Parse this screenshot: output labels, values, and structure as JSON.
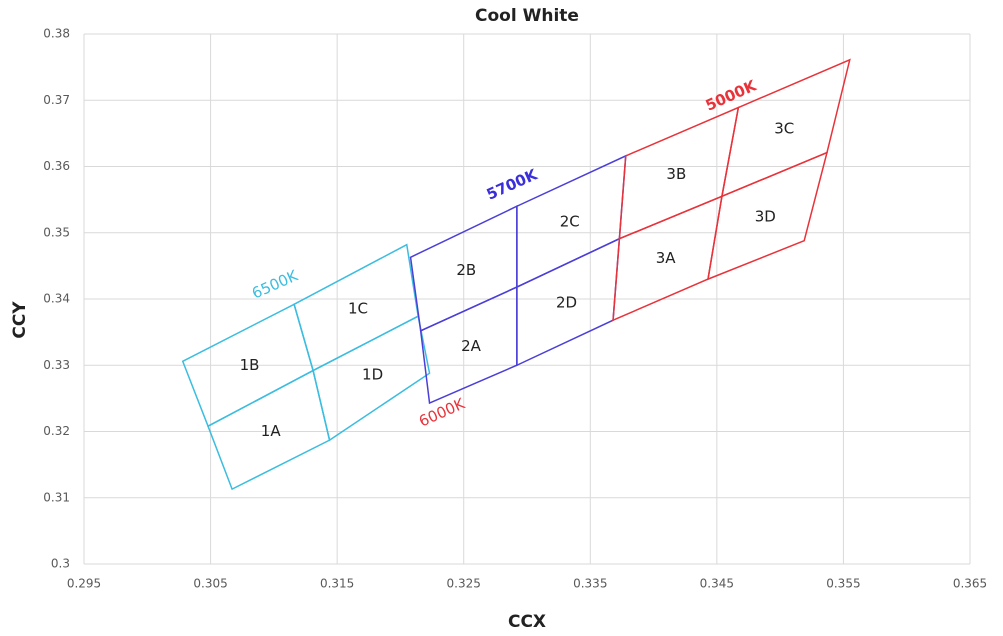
{
  "chart_data": {
    "type": "region",
    "title": "Cool White",
    "x_label": "CCX",
    "y_label": "CCY",
    "xlim": [
      0.295,
      0.365
    ],
    "xticks": [
      0.295,
      0.305,
      0.315,
      0.325,
      0.335,
      0.345,
      0.355,
      0.365
    ],
    "ylim": [
      0.3,
      0.38
    ],
    "yticks": [
      0.3,
      0.31,
      0.32,
      0.33,
      0.34,
      0.35,
      0.36,
      0.37,
      0.38
    ],
    "grid": true,
    "regions": [
      {
        "label": "1A",
        "color": "#3bbde0",
        "x": [
          0.3048,
          0.3131,
          0.3144,
          0.3067
        ],
        "y": [
          0.3208,
          0.3292,
          0.3187,
          0.3113
        ]
      },
      {
        "label": "1B",
        "color": "#3bbde0",
        "x": [
          0.3028,
          0.3116,
          0.3131,
          0.3048
        ],
        "y": [
          0.3306,
          0.3392,
          0.3292,
          0.3208
        ]
      },
      {
        "label": "1C",
        "color": "#3bbde0",
        "x": [
          0.3116,
          0.3205,
          0.3214,
          0.3131
        ],
        "y": [
          0.3392,
          0.3482,
          0.3374,
          0.3292
        ]
      },
      {
        "label": "1D",
        "color": "#3bbde0",
        "x": [
          0.3131,
          0.3214,
          0.3223,
          0.3144
        ],
        "y": [
          0.3292,
          0.3374,
          0.3288,
          0.3187
        ]
      },
      {
        "label": "2A",
        "color": "#4b3fd8",
        "x": [
          0.3216,
          0.3292,
          0.3292,
          0.3223
        ],
        "y": [
          0.3352,
          0.3418,
          0.33,
          0.3243
        ]
      },
      {
        "label": "2B",
        "color": "#4b3fd8",
        "x": [
          0.3208,
          0.3292,
          0.3292,
          0.3216
        ],
        "y": [
          0.3463,
          0.354,
          0.3418,
          0.3352
        ]
      },
      {
        "label": "2C",
        "color": "#4b3fd8",
        "x": [
          0.3292,
          0.3378,
          0.3373,
          0.3292
        ],
        "y": [
          0.354,
          0.3616,
          0.3491,
          0.3418
        ]
      },
      {
        "label": "2D",
        "color": "#4b3fd8",
        "x": [
          0.3292,
          0.3373,
          0.3368,
          0.3292
        ],
        "y": [
          0.3418,
          0.3491,
          0.3368,
          0.33
        ]
      },
      {
        "label": "3A",
        "color": "#e8333a",
        "x": [
          0.3373,
          0.3454,
          0.3443,
          0.3368
        ],
        "y": [
          0.3491,
          0.3555,
          0.343,
          0.3368
        ]
      },
      {
        "label": "3B",
        "color": "#e8333a",
        "x": [
          0.3378,
          0.3467,
          0.3454,
          0.3373
        ],
        "y": [
          0.3616,
          0.3689,
          0.3555,
          0.3491
        ]
      },
      {
        "label": "3C",
        "color": "#e8333a",
        "x": [
          0.3467,
          0.3555,
          0.3537,
          0.3454
        ],
        "y": [
          0.3689,
          0.3761,
          0.3621,
          0.3555
        ]
      },
      {
        "label": "3D",
        "color": "#e8333a",
        "x": [
          0.3454,
          0.3537,
          0.3519,
          0.3443
        ],
        "y": [
          0.3555,
          0.3621,
          0.3488,
          0.343
        ]
      }
    ],
    "annotations": [
      {
        "text": "6500K",
        "color": "#3bbde0"
      },
      {
        "text": "6000K",
        "color": "#e8333a"
      },
      {
        "text": "5700K",
        "color": "#3a2fd8"
      },
      {
        "text": "5000K",
        "color": "#e8333a"
      }
    ]
  }
}
